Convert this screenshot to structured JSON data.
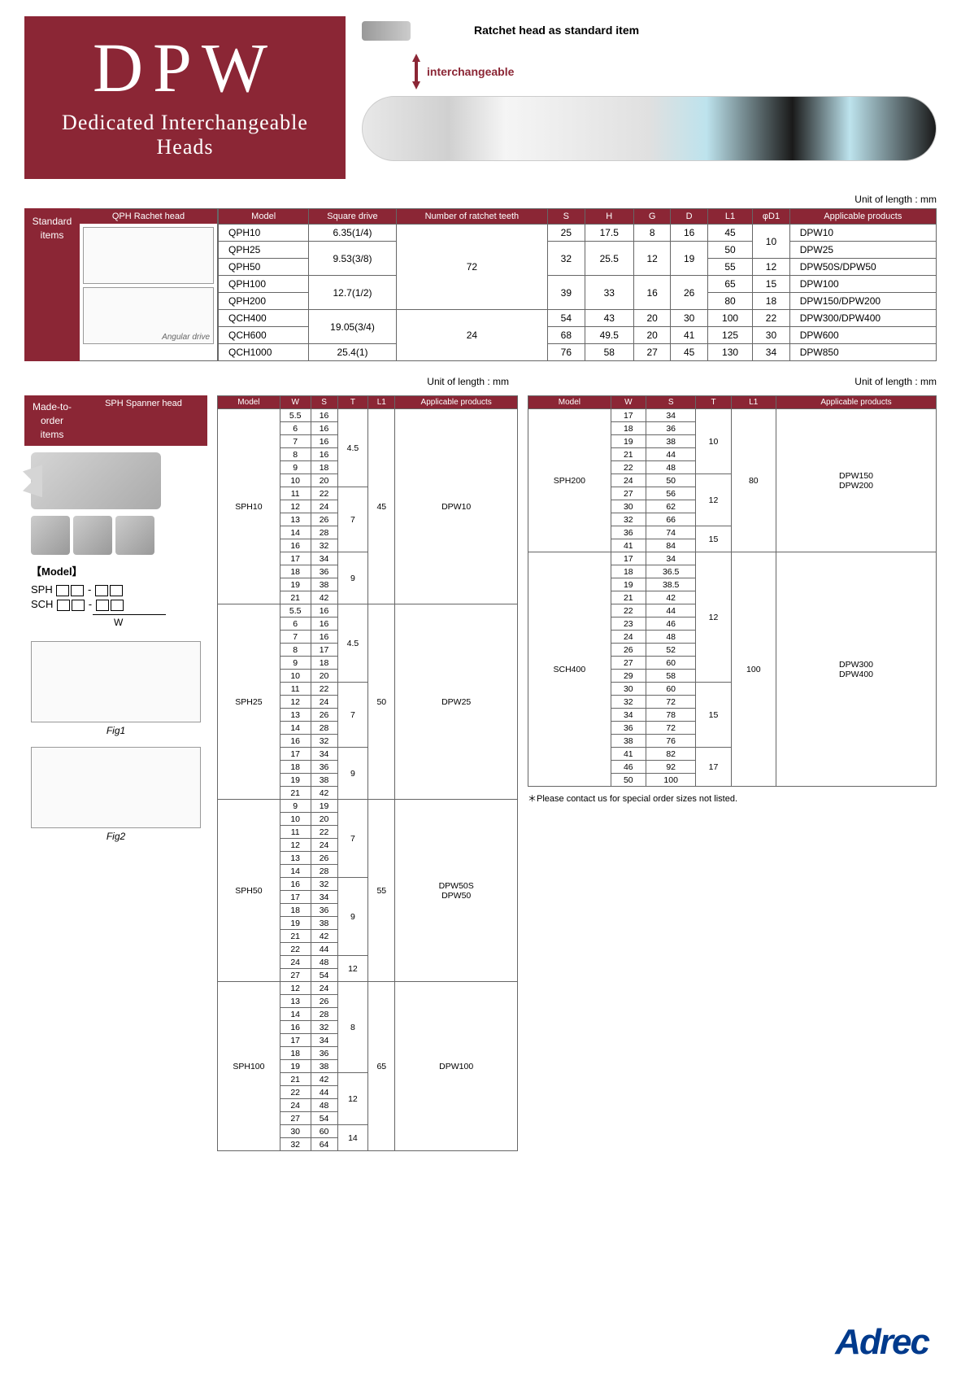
{
  "hero": {
    "title": "DPW",
    "subtitle": "Dedicated Interchangeable Heads",
    "std_item": "Ratchet head as standard item",
    "interchangeable": "interchangeable"
  },
  "unit_label": "Unit of length : mm",
  "labels": {
    "standard": "Standard items",
    "made": "Made-to-order items",
    "qph_title": "QPH Rachet head",
    "sph_title": "SPH Spanner head",
    "angular": "Angular drive",
    "model": "【Model】",
    "sph_eq": "SPH",
    "sch_eq": "SCH",
    "w": "W",
    "fig1": "Fig1",
    "fig2": "Fig2",
    "note": "＊Please contact us for special order sizes not listed."
  },
  "qph": {
    "cols": [
      "Model",
      "Square drive",
      "Number of ratchet teeth",
      "S",
      "H",
      "G",
      "D",
      "L1",
      "φD1",
      "Applicable products"
    ],
    "rows": [
      {
        "model": "QPH10",
        "sq": "6.35(1/4)",
        "teeth": "72",
        "s": "25",
        "h": "17.5",
        "g": "8",
        "d": "16",
        "l1": "45",
        "d1": "10",
        "app": "DPW10"
      },
      {
        "model": "QPH25",
        "sq": "9.53(3/8)",
        "teeth": "",
        "s": "32",
        "h": "25.5",
        "g": "12",
        "d": "19",
        "l1": "50",
        "d1": "",
        "app": "DPW25"
      },
      {
        "model": "QPH50",
        "sq": "",
        "teeth": "",
        "s": "",
        "h": "",
        "g": "",
        "d": "",
        "l1": "55",
        "d1": "12",
        "app": "DPW50S/DPW50"
      },
      {
        "model": "QPH100",
        "sq": "12.7(1/2)",
        "teeth": "",
        "s": "39",
        "h": "33",
        "g": "16",
        "d": "26",
        "l1": "65",
        "d1": "15",
        "app": "DPW100"
      },
      {
        "model": "QPH200",
        "sq": "",
        "teeth": "",
        "s": "",
        "h": "",
        "g": "",
        "d": "",
        "l1": "80",
        "d1": "18",
        "app": "DPW150/DPW200"
      },
      {
        "model": "QCH400",
        "sq": "19.05(3/4)",
        "teeth": "24",
        "s": "54",
        "h": "43",
        "g": "20",
        "d": "30",
        "l1": "100",
        "d1": "22",
        "app": "DPW300/DPW400"
      },
      {
        "model": "QCH600",
        "sq": "",
        "teeth": "",
        "s": "68",
        "h": "49.5",
        "g": "20",
        "d": "41",
        "l1": "125",
        "d1": "30",
        "app": "DPW600"
      },
      {
        "model": "QCH1000",
        "sq": "25.4(1)",
        "teeth": "",
        "s": "76",
        "h": "58",
        "g": "27",
        "d": "45",
        "l1": "130",
        "d1": "34",
        "app": "DPW850"
      }
    ]
  },
  "sph": {
    "cols": [
      "Model",
      "W",
      "S",
      "T",
      "L1",
      "Applicable products"
    ],
    "groups": [
      {
        "model": "SPH10",
        "l1": "45",
        "app": "DPW10",
        "rows": [
          {
            "w": "5.5",
            "s": "16",
            "t": "4.5"
          },
          {
            "w": "6",
            "s": "16",
            "t": ""
          },
          {
            "w": "7",
            "s": "16",
            "t": ""
          },
          {
            "w": "8",
            "s": "16",
            "t": ""
          },
          {
            "w": "9",
            "s": "18",
            "t": ""
          },
          {
            "w": "10",
            "s": "20",
            "t": ""
          },
          {
            "w": "11",
            "s": "22",
            "t": "7"
          },
          {
            "w": "12",
            "s": "24",
            "t": ""
          },
          {
            "w": "13",
            "s": "26",
            "t": ""
          },
          {
            "w": "14",
            "s": "28",
            "t": ""
          },
          {
            "w": "16",
            "s": "32",
            "t": ""
          },
          {
            "w": "17",
            "s": "34",
            "t": "9"
          },
          {
            "w": "18",
            "s": "36",
            "t": ""
          },
          {
            "w": "19",
            "s": "38",
            "t": ""
          },
          {
            "w": "21",
            "s": "42",
            "t": ""
          }
        ]
      },
      {
        "model": "SPH25",
        "l1": "50",
        "app": "DPW25",
        "rows": [
          {
            "w": "5.5",
            "s": "16",
            "t": "4.5"
          },
          {
            "w": "6",
            "s": "16",
            "t": ""
          },
          {
            "w": "7",
            "s": "16",
            "t": ""
          },
          {
            "w": "8",
            "s": "17",
            "t": ""
          },
          {
            "w": "9",
            "s": "18",
            "t": ""
          },
          {
            "w": "10",
            "s": "20",
            "t": ""
          },
          {
            "w": "11",
            "s": "22",
            "t": "7"
          },
          {
            "w": "12",
            "s": "24",
            "t": ""
          },
          {
            "w": "13",
            "s": "26",
            "t": ""
          },
          {
            "w": "14",
            "s": "28",
            "t": ""
          },
          {
            "w": "16",
            "s": "32",
            "t": ""
          },
          {
            "w": "17",
            "s": "34",
            "t": "9"
          },
          {
            "w": "18",
            "s": "36",
            "t": ""
          },
          {
            "w": "19",
            "s": "38",
            "t": ""
          },
          {
            "w": "21",
            "s": "42",
            "t": ""
          }
        ]
      },
      {
        "model": "SPH50",
        "l1": "55",
        "app": "DPW50S\nDPW50",
        "rows": [
          {
            "w": "9",
            "s": "19",
            "t": "7"
          },
          {
            "w": "10",
            "s": "20",
            "t": ""
          },
          {
            "w": "11",
            "s": "22",
            "t": ""
          },
          {
            "w": "12",
            "s": "24",
            "t": ""
          },
          {
            "w": "13",
            "s": "26",
            "t": ""
          },
          {
            "w": "14",
            "s": "28",
            "t": ""
          },
          {
            "w": "16",
            "s": "32",
            "t": "9"
          },
          {
            "w": "17",
            "s": "34",
            "t": ""
          },
          {
            "w": "18",
            "s": "36",
            "t": ""
          },
          {
            "w": "19",
            "s": "38",
            "t": ""
          },
          {
            "w": "21",
            "s": "42",
            "t": ""
          },
          {
            "w": "22",
            "s": "44",
            "t": ""
          },
          {
            "w": "24",
            "s": "48",
            "t": "12"
          },
          {
            "w": "27",
            "s": "54",
            "t": ""
          }
        ]
      },
      {
        "model": "SPH100",
        "l1": "65",
        "app": "DPW100",
        "rows": [
          {
            "w": "12",
            "s": "24",
            "t": "8"
          },
          {
            "w": "13",
            "s": "26",
            "t": ""
          },
          {
            "w": "14",
            "s": "28",
            "t": ""
          },
          {
            "w": "16",
            "s": "32",
            "t": ""
          },
          {
            "w": "17",
            "s": "34",
            "t": ""
          },
          {
            "w": "18",
            "s": "36",
            "t": ""
          },
          {
            "w": "19",
            "s": "38",
            "t": ""
          },
          {
            "w": "21",
            "s": "42",
            "t": "12"
          },
          {
            "w": "22",
            "s": "44",
            "t": ""
          },
          {
            "w": "24",
            "s": "48",
            "t": ""
          },
          {
            "w": "27",
            "s": "54",
            "t": ""
          },
          {
            "w": "30",
            "s": "60",
            "t": "14"
          },
          {
            "w": "32",
            "s": "64",
            "t": ""
          }
        ]
      }
    ]
  },
  "sph2": {
    "cols": [
      "Model",
      "W",
      "S",
      "T",
      "L1",
      "Applicable products"
    ],
    "groups": [
      {
        "model": "SPH200",
        "l1": "80",
        "app": "DPW150\nDPW200",
        "rows": [
          {
            "w": "17",
            "s": "34",
            "t": "10"
          },
          {
            "w": "18",
            "s": "36",
            "t": ""
          },
          {
            "w": "19",
            "s": "38",
            "t": ""
          },
          {
            "w": "21",
            "s": "44",
            "t": ""
          },
          {
            "w": "22",
            "s": "48",
            "t": ""
          },
          {
            "w": "24",
            "s": "50",
            "t": "12"
          },
          {
            "w": "27",
            "s": "56",
            "t": ""
          },
          {
            "w": "30",
            "s": "62",
            "t": ""
          },
          {
            "w": "32",
            "s": "66",
            "t": ""
          },
          {
            "w": "36",
            "s": "74",
            "t": "15"
          },
          {
            "w": "41",
            "s": "84",
            "t": ""
          }
        ]
      },
      {
        "model": "SCH400",
        "l1": "100",
        "app": "DPW300\nDPW400",
        "rows": [
          {
            "w": "17",
            "s": "34",
            "t": "12"
          },
          {
            "w": "18",
            "s": "36.5",
            "t": ""
          },
          {
            "w": "19",
            "s": "38.5",
            "t": ""
          },
          {
            "w": "21",
            "s": "42",
            "t": ""
          },
          {
            "w": "22",
            "s": "44",
            "t": ""
          },
          {
            "w": "23",
            "s": "46",
            "t": ""
          },
          {
            "w": "24",
            "s": "48",
            "t": ""
          },
          {
            "w": "26",
            "s": "52",
            "t": ""
          },
          {
            "w": "27",
            "s": "60",
            "t": ""
          },
          {
            "w": "29",
            "s": "58",
            "t": ""
          },
          {
            "w": "30",
            "s": "60",
            "t": "15"
          },
          {
            "w": "32",
            "s": "72",
            "t": ""
          },
          {
            "w": "34",
            "s": "78",
            "t": ""
          },
          {
            "w": "36",
            "s": "72",
            "t": ""
          },
          {
            "w": "38",
            "s": "76",
            "t": ""
          },
          {
            "w": "41",
            "s": "82",
            "t": "17"
          },
          {
            "w": "46",
            "s": "92",
            "t": ""
          },
          {
            "w": "50",
            "s": "100",
            "t": ""
          }
        ]
      }
    ]
  },
  "brand": "Adrec",
  "colors": {
    "maroon": "#8b2635",
    "blue": "#003a8c"
  }
}
